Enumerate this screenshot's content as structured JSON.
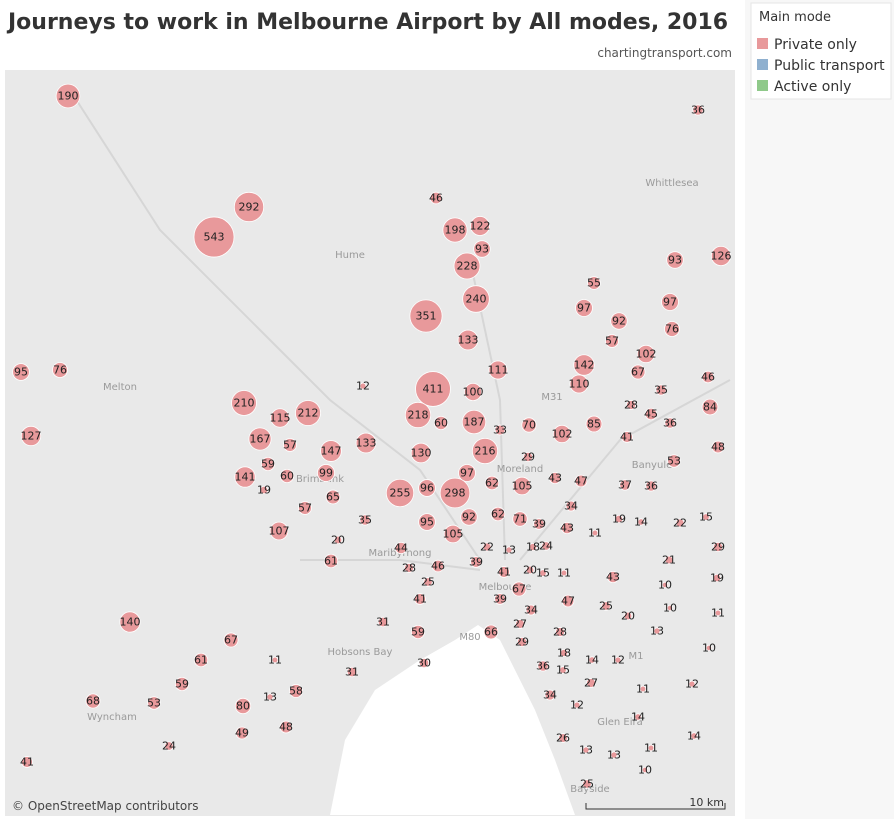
{
  "header": {
    "title": "Journeys to work in Melbourne Airport by All modes, 2016",
    "source": "chartingtransport.com"
  },
  "legend": {
    "title": "Main mode",
    "items": [
      {
        "name": "Private only",
        "color": "#e8999b"
      },
      {
        "name": "Public transport",
        "color": "#8fb0cf"
      },
      {
        "name": "Active only",
        "color": "#8fc98a"
      }
    ]
  },
  "zones": [
    190,
    36,
    46,
    292,
    543,
    198,
    122,
    93,
    228,
    93,
    126,
    55,
    240,
    97,
    97,
    351,
    92,
    76,
    57,
    133,
    102,
    142,
    111,
    67,
    95,
    76,
    110,
    35,
    46,
    12,
    411,
    100,
    210,
    212,
    115,
    28,
    45,
    84,
    218,
    60,
    187,
    70,
    36,
    85,
    127,
    167,
    57,
    133,
    147,
    102,
    41,
    33,
    48,
    216,
    130,
    59,
    97,
    29,
    53,
    99,
    60,
    141,
    19,
    62,
    105,
    43,
    47,
    37,
    36,
    255,
    96,
    298,
    65,
    57,
    34,
    35,
    92,
    62,
    71,
    39,
    43,
    19,
    14,
    22,
    15,
    95,
    11,
    107,
    105,
    20,
    44,
    22,
    13,
    18,
    24,
    29,
    61,
    39,
    21,
    28,
    46,
    41,
    20,
    15,
    11,
    43,
    19,
    25,
    67,
    10,
    41,
    39,
    34,
    47,
    25,
    20,
    10,
    11,
    140,
    31,
    59,
    27,
    66,
    28,
    13,
    67,
    29,
    10,
    18,
    14,
    12,
    61,
    11,
    36,
    15,
    30,
    31,
    27,
    59,
    58,
    13,
    11,
    12,
    68,
    53,
    34,
    80,
    12,
    48,
    49,
    14,
    14,
    26,
    13,
    13,
    11,
    24,
    41,
    10,
    25
  ],
  "map_labels": [
    "Whittlesea",
    "Hume",
    "Melton",
    "Brimbank",
    "Moreland",
    "Banyule",
    "Maribyrnong",
    "Melbourne",
    "Hobsons Bay",
    "Wyncham",
    "Glen Eira",
    "Bayside",
    "M31",
    "M80",
    "M1"
  ],
  "attribution": "© OpenStreetMap contributors",
  "scale": "10 km"
}
